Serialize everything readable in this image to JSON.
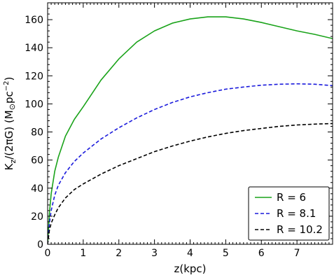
{
  "chart_data": {
    "type": "line",
    "xlabel": "z(kpc)",
    "ylabel": "K_z/(2πG) (M_⊙pc^-2)",
    "xlim": [
      0,
      8
    ],
    "ylim": [
      0,
      172
    ],
    "xticks": [
      0,
      1,
      2,
      3,
      4,
      5,
      6,
      7
    ],
    "yticks": [
      0,
      20,
      40,
      60,
      80,
      100,
      120,
      140,
      160
    ],
    "grid": false,
    "legend_position": "bottom-right",
    "series": [
      {
        "name": "R = 6",
        "color": "#1aa31a",
        "dash": "solid",
        "x": [
          0,
          0.05,
          0.1,
          0.2,
          0.3,
          0.5,
          0.75,
          1,
          1.5,
          2,
          2.5,
          3,
          3.5,
          4,
          4.5,
          5,
          5.5,
          6,
          6.5,
          7,
          7.5,
          8
        ],
        "y": [
          0,
          22,
          36,
          52,
          62,
          77,
          89,
          98,
          117,
          132,
          144,
          152,
          157.5,
          160.5,
          162,
          162,
          160.5,
          158,
          155,
          152,
          149.5,
          146.5
        ]
      },
      {
        "name": "R = 8.1",
        "color": "#1a1adc",
        "dash": "dashed",
        "x": [
          0,
          0.05,
          0.1,
          0.2,
          0.3,
          0.5,
          0.75,
          1,
          1.5,
          2,
          2.5,
          3,
          3.5,
          4,
          4.5,
          5,
          5.5,
          6,
          6.5,
          7,
          7.5,
          8
        ],
        "y": [
          0,
          15,
          24,
          35,
          42,
          51,
          59,
          65,
          75,
          83,
          90,
          96,
          101,
          105,
          108,
          110.5,
          112,
          113.3,
          114,
          114.3,
          114,
          113
        ]
      },
      {
        "name": "R = 10.2",
        "color": "#000000",
        "dash": "dashed",
        "x": [
          0,
          0.05,
          0.1,
          0.2,
          0.3,
          0.5,
          0.75,
          1,
          1.5,
          2,
          2.5,
          3,
          3.5,
          4,
          4.5,
          5,
          5.5,
          6,
          6.5,
          7,
          7.5,
          8
        ],
        "y": [
          0,
          10,
          15,
          21,
          26,
          33,
          39,
          43,
          50,
          56,
          61,
          66,
          70,
          73.5,
          76.5,
          79,
          81,
          82.5,
          84,
          85,
          85.6,
          86
        ]
      }
    ]
  }
}
